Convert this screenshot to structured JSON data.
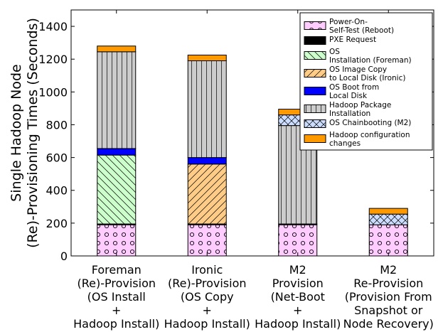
{
  "chart_data": {
    "type": "bar",
    "stacked": true,
    "ylabel": "Single Hadoop Node\n(Re)-Provisioning Times (Seconds)",
    "ylim": [
      0,
      1500
    ],
    "yticks": [
      0,
      200,
      400,
      600,
      800,
      1000,
      1200,
      1400
    ],
    "categories": [
      [
        "Foreman",
        "(Re)-Provision",
        "(OS Install",
        "+",
        "Hadoop Install)"
      ],
      [
        "Ironic",
        "(Re)-Provision",
        "(OS Copy",
        "+",
        "Hadoop Install)"
      ],
      [
        "M2",
        "Provision",
        "(Net-Boot",
        "+",
        "Hadoop Install)"
      ],
      [
        "M2",
        "Re-Provision",
        "(Provision From",
        "Snapshot or",
        "Node Recovery)"
      ]
    ],
    "legend_position": "top-right",
    "series": [
      {
        "name": "Power-On-\nSelf-Test (Reboot)",
        "color": "#ffccff",
        "hatch": "circles",
        "values": [
          190,
          190,
          190,
          190
        ]
      },
      {
        "name": "PXE Request",
        "color": "#000000",
        "hatch": "none",
        "values": [
          5,
          5,
          5,
          0
        ]
      },
      {
        "name": "OS\nInstallation (Foreman)",
        "color": "#ccffcc",
        "hatch": "backslash",
        "values": [
          420,
          0,
          0,
          0
        ]
      },
      {
        "name": "OS Image Copy\nto Local Disk (Ironic)",
        "color": "#ffcc88",
        "hatch": "slash",
        "values": [
          0,
          365,
          0,
          0
        ]
      },
      {
        "name": "OS Boot from\nLocal Disk",
        "color": "#0000ff",
        "hatch": "none",
        "values": [
          40,
          40,
          0,
          0
        ]
      },
      {
        "name": "Hadoop Package\nInstallation",
        "color": "#cccccc",
        "hatch": "vertical",
        "values": [
          590,
          590,
          600,
          0
        ]
      },
      {
        "name": "OS Chainbooting (M2)",
        "color": "#ccddff",
        "hatch": "cross",
        "values": [
          0,
          0,
          65,
          65
        ]
      },
      {
        "name": "Hadoop configuration\nchanges",
        "color": "#ff9900",
        "hatch": "none",
        "values": [
          35,
          35,
          35,
          35
        ]
      }
    ]
  }
}
